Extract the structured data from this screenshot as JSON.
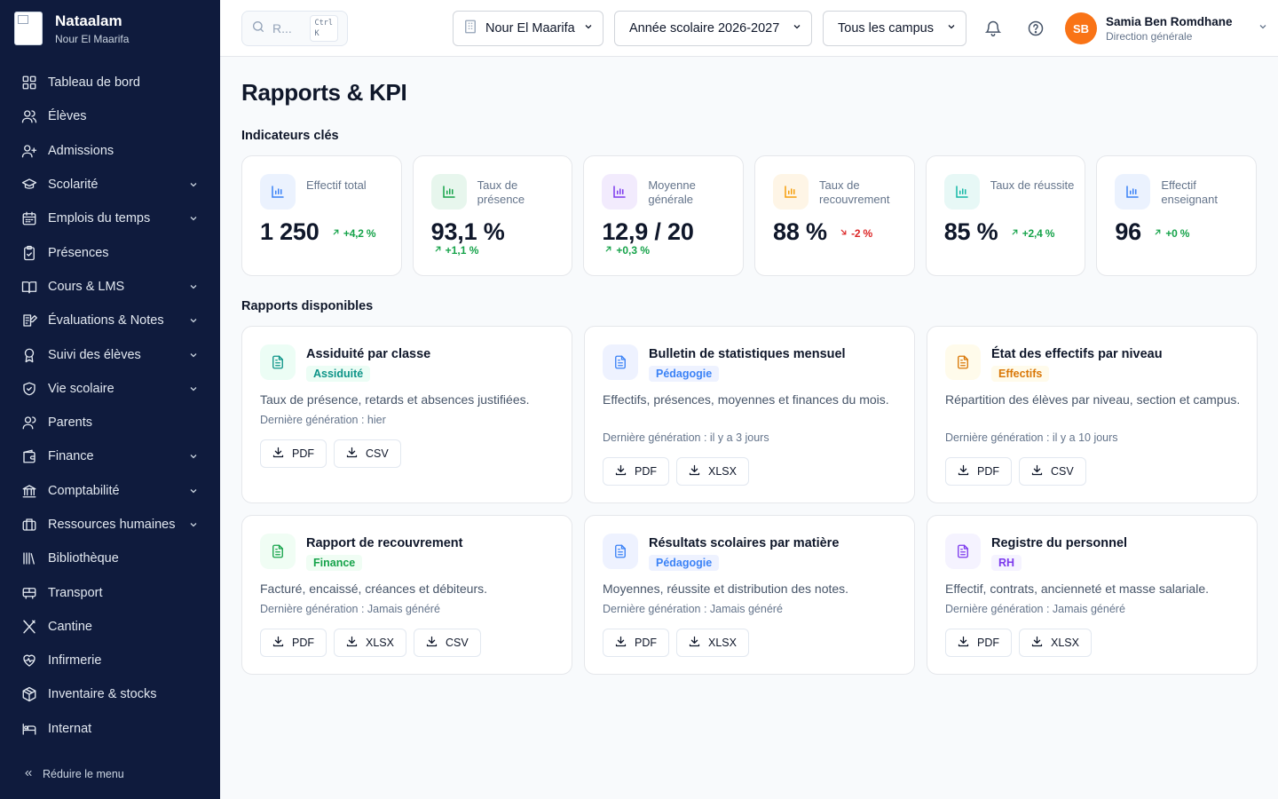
{
  "brand": {
    "name": "Nataalam",
    "subtitle": "Nour El Maarifa"
  },
  "sidebar": {
    "items": [
      {
        "label": "Tableau de bord",
        "icon": "dashboard-icon",
        "expandable": false
      },
      {
        "label": "Élèves",
        "icon": "users-icon",
        "expandable": false
      },
      {
        "label": "Admissions",
        "icon": "user-plus-icon",
        "expandable": false
      },
      {
        "label": "Scolarité",
        "icon": "graduation-cap-icon",
        "expandable": true
      },
      {
        "label": "Emplois du temps",
        "icon": "calendar-icon",
        "expandable": true
      },
      {
        "label": "Présences",
        "icon": "clipboard-check-icon",
        "expandable": false
      },
      {
        "label": "Cours & LMS",
        "icon": "book-open-icon",
        "expandable": true
      },
      {
        "label": "Évaluations & Notes",
        "icon": "edit-note-icon",
        "expandable": true
      },
      {
        "label": "Suivi des élèves",
        "icon": "award-icon",
        "expandable": true
      },
      {
        "label": "Vie scolaire",
        "icon": "shield-check-icon",
        "expandable": true
      },
      {
        "label": "Parents",
        "icon": "user-icon",
        "expandable": false
      },
      {
        "label": "Finance",
        "icon": "wallet-icon",
        "expandable": true
      },
      {
        "label": "Comptabilité",
        "icon": "landmark-icon",
        "expandable": true
      },
      {
        "label": "Ressources humaines",
        "icon": "briefcase-icon",
        "expandable": true
      },
      {
        "label": "Bibliothèque",
        "icon": "library-icon",
        "expandable": false
      },
      {
        "label": "Transport",
        "icon": "bus-icon",
        "expandable": false
      },
      {
        "label": "Cantine",
        "icon": "utensils-icon",
        "expandable": false
      },
      {
        "label": "Infirmerie",
        "icon": "heart-pulse-icon",
        "expandable": false
      },
      {
        "label": "Inventaire & stocks",
        "icon": "package-icon",
        "expandable": false
      },
      {
        "label": "Internat",
        "icon": "bed-icon",
        "expandable": false
      }
    ],
    "collapse_label": "Réduire le menu"
  },
  "topbar": {
    "search_placeholder": "R...",
    "shortcut_line1": "Ctrl",
    "shortcut_line2": "K",
    "school": "Nour El Maarifa",
    "year": "Année scolaire 2026-2027",
    "campus": "Tous les campus",
    "user": {
      "initials": "SB",
      "name": "Samia Ben Romdhane",
      "role": "Direction générale",
      "avatar_color": "#f97316"
    }
  },
  "page": {
    "title": "Rapports & KPI",
    "kpi_section": "Indicateurs clés",
    "reports_section": "Rapports disponibles"
  },
  "kpis": [
    {
      "label": "Effectif total",
      "value": "1 250",
      "delta": "+4,2 %",
      "trend": "up",
      "color": "#3b82f6",
      "wrap": false
    },
    {
      "label": "Taux de présence",
      "value": "93,1 %",
      "delta": "+1,1 %",
      "trend": "up",
      "color": "#16a34a",
      "wrap": true
    },
    {
      "label": "Moyenne générale",
      "value": "12,9 / 20",
      "delta": "+0,3 %",
      "trend": "up",
      "color": "#7c3aed",
      "wrap": true
    },
    {
      "label": "Taux de recouvrement",
      "value": "88 %",
      "delta": "-2 %",
      "trend": "down",
      "color": "#f59e0b",
      "wrap": false
    },
    {
      "label": "Taux de réussite",
      "value": "85 %",
      "delta": "+2,4 %",
      "trend": "up",
      "color": "#14b8a6",
      "wrap": false
    },
    {
      "label": "Effectif enseignant",
      "value": "96",
      "delta": "+0 %",
      "trend": "up",
      "color": "#3b82f6",
      "wrap": false
    }
  ],
  "reports": [
    {
      "title": "Assiduité par classe",
      "badge": "Assiduité",
      "badge_class": "b-teal",
      "icon_class": "b-teal",
      "description": "Taux de présence, retards et absences justifiées.",
      "last": "Dernière génération : hier",
      "formats": [
        "PDF",
        "CSV"
      ],
      "desc_lines": 1
    },
    {
      "title": "Bulletin de statistiques mensuel",
      "badge": "Pédagogie",
      "badge_class": "b-lblue",
      "icon_class": "b-lblue",
      "description": "Effectifs, présences, moyennes et finances du mois.",
      "last": "Dernière génération : il y a 3 jours",
      "formats": [
        "PDF",
        "XLSX"
      ],
      "desc_lines": 2
    },
    {
      "title": "État des effectifs par niveau",
      "badge": "Effectifs",
      "badge_class": "b-amber",
      "icon_class": "b-amber",
      "description": "Répartition des élèves par niveau, section et campus.",
      "last": "Dernière génération : il y a 10 jours",
      "formats": [
        "PDF",
        "CSV"
      ],
      "desc_lines": 2
    },
    {
      "title": "Rapport de recouvrement",
      "badge": "Finance",
      "badge_class": "b-green",
      "icon_class": "b-green",
      "description": "Facturé, encaissé, créances et débiteurs.",
      "last": "Dernière génération : Jamais généré",
      "formats": [
        "PDF",
        "XLSX",
        "CSV"
      ],
      "desc_lines": 1
    },
    {
      "title": "Résultats scolaires par matière",
      "badge": "Pédagogie",
      "badge_class": "b-lblue",
      "icon_class": "b-lblue",
      "description": "Moyennes, réussite et distribution des notes.",
      "last": "Dernière génération : Jamais généré",
      "formats": [
        "PDF",
        "XLSX"
      ],
      "desc_lines": 1
    },
    {
      "title": "Registre du personnel",
      "badge": "RH",
      "badge_class": "b-purple",
      "icon_class": "b-purple",
      "description": "Effectif, contrats, ancienneté et masse salariale.",
      "last": "Dernière génération : Jamais généré",
      "formats": [
        "PDF",
        "XLSX"
      ],
      "desc_lines": 1
    }
  ]
}
